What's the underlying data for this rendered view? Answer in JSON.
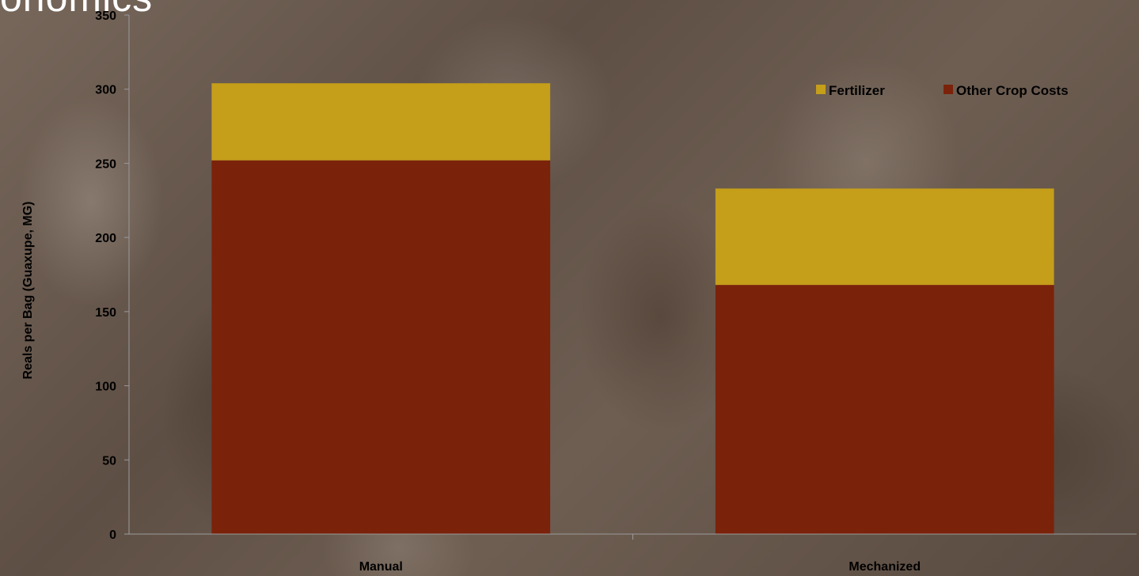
{
  "page": {
    "title": "onomics"
  },
  "chart_data": {
    "type": "bar",
    "stacked": true,
    "categories": [
      "Manual",
      "Mechanized"
    ],
    "series": [
      {
        "name": "Other Crop Costs",
        "color": "#7b220b",
        "values": [
          252,
          168
        ]
      },
      {
        "name": "Fertilizer",
        "color": "#c59e1a",
        "values": [
          52,
          65
        ]
      }
    ],
    "legend_order": [
      "Fertilizer",
      "Other Crop Costs"
    ],
    "title": "",
    "xlabel": "",
    "ylabel": "Reals per Bag (Guaxupe, MG)",
    "ylim": [
      0,
      350
    ],
    "yticks": [
      0,
      50,
      100,
      150,
      200,
      250,
      300,
      350
    ],
    "grid": false,
    "legend_position": "top-right"
  }
}
